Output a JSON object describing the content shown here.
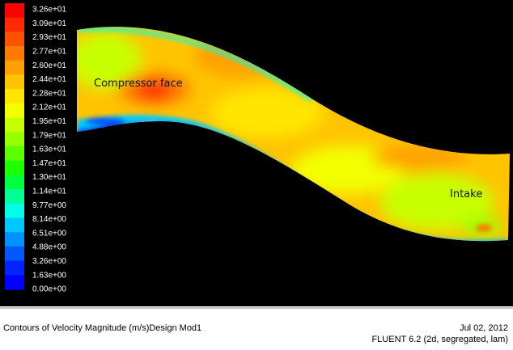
{
  "legend": {
    "labels": [
      "3.26e+01",
      "3.09e+01",
      "2.93e+01",
      "2.77e+01",
      "2.60e+01",
      "2.44e+01",
      "2.28e+01",
      "2.12e+01",
      "1.95e+01",
      "1.79e+01",
      "1.63e+01",
      "1.47e+01",
      "1.30e+01",
      "1.14e+01",
      "9.77e+00",
      "8.14e+00",
      "6.51e+00",
      "4.88e+00",
      "3.26e+00",
      "1.63e+00",
      "0.00e+00"
    ],
    "colors": [
      "#ff0000",
      "#ff2a00",
      "#ff5200",
      "#ff7a00",
      "#ffa000",
      "#ffc400",
      "#ffe600",
      "#f2ff00",
      "#c8ff00",
      "#96ff00",
      "#5cff00",
      "#1eff00",
      "#00ff3c",
      "#00ff96",
      "#00ffe6",
      "#00c8ff",
      "#0090ff",
      "#0058ff",
      "#0024ff",
      "#0000ff"
    ]
  },
  "annotations": [
    "Compressor face",
    "Intake"
  ],
  "footer": {
    "title": "Contours of Velocity Magnitude (m/s)Design Mod1",
    "date": "Jul 02, 2012",
    "solver": "FLUENT 6.2 (2d, segregated, lam)"
  }
}
